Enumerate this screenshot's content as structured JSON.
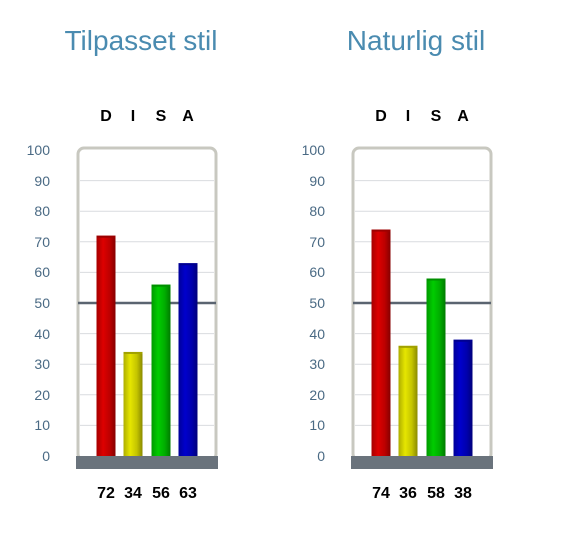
{
  "chart_data": [
    {
      "type": "bar",
      "title": "Tilpasset stil",
      "categories": [
        "D",
        "I",
        "S",
        "A"
      ],
      "values": [
        72,
        34,
        56,
        63
      ],
      "value_labels": [
        "72",
        "34",
        "56",
        "63"
      ],
      "colors": [
        "#dd0000",
        "#e6e600",
        "#00cc00",
        "#0000cc"
      ],
      "ylim": [
        0,
        100
      ],
      "yticks": [
        "100",
        "90",
        "80",
        "70",
        "60",
        "50",
        "40",
        "30",
        "20",
        "10",
        "0"
      ],
      "reference_line": 50,
      "grid": true
    },
    {
      "type": "bar",
      "title": "Naturlig stil",
      "categories": [
        "D",
        "I",
        "S",
        "A"
      ],
      "values": [
        74,
        36,
        58,
        38
      ],
      "value_labels": [
        "74",
        "36",
        "58",
        "38"
      ],
      "colors": [
        "#dd0000",
        "#e6e600",
        "#00cc00",
        "#0000cc"
      ],
      "ylim": [
        0,
        100
      ],
      "yticks": [
        "100",
        "90",
        "80",
        "70",
        "60",
        "50",
        "40",
        "30",
        "20",
        "10",
        "0"
      ],
      "reference_line": 50,
      "grid": true
    }
  ]
}
